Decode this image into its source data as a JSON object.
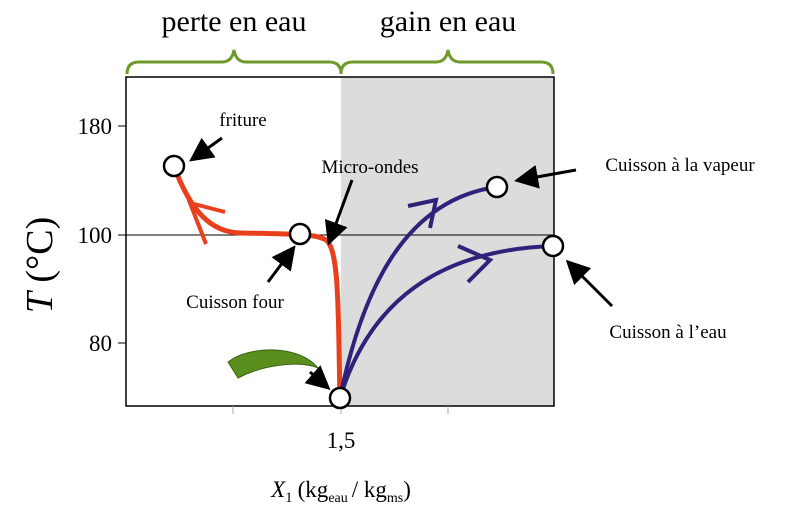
{
  "header": {
    "left": "perte en eau",
    "right": "gain en eau"
  },
  "y_axis": {
    "symbol": "T",
    "unit": "(°C)",
    "ticks": [
      "180",
      "100",
      "80"
    ]
  },
  "x_axis": {
    "tick": "1,5",
    "symbol": "X",
    "subscript": "1",
    "open": "(kg",
    "sub1": "eau",
    "mid": "/ kg",
    "sub2": "ms",
    "close": ")"
  },
  "labels": {
    "friture": "friture",
    "micro": "Micro-ondes",
    "four": "Cuisson four",
    "vapeur": "Cuisson à la vapeur",
    "eau": "Cuisson à l’eau"
  }
}
